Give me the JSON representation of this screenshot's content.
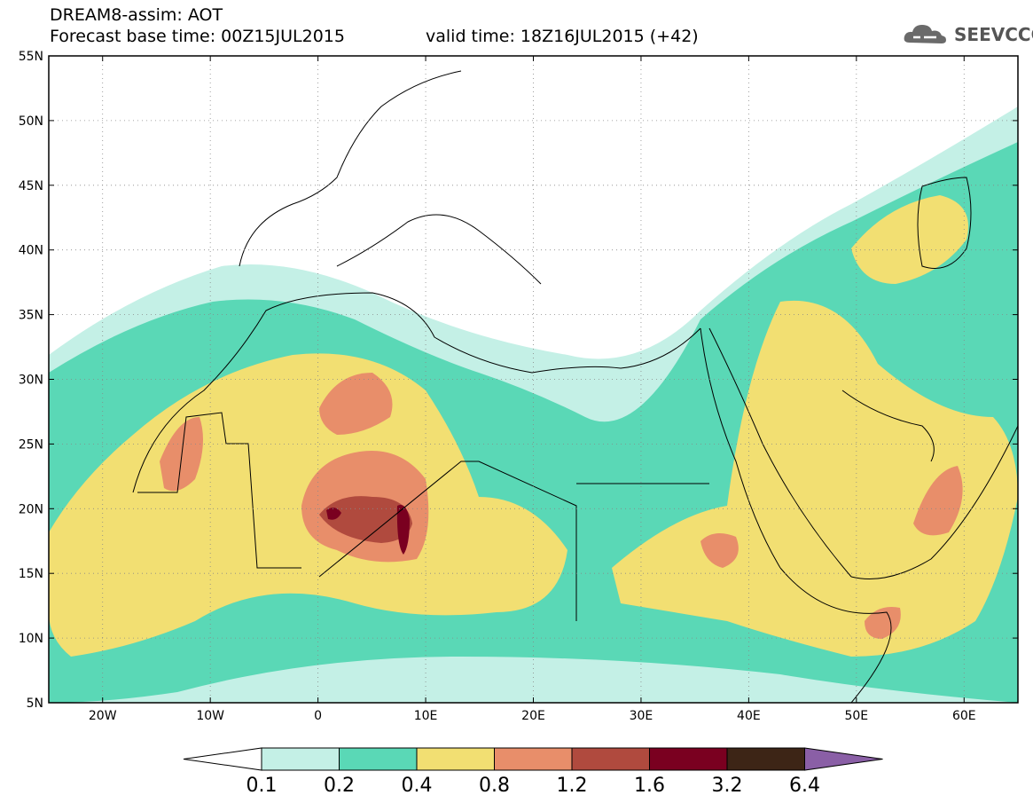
{
  "header": {
    "title_line1": "DREAM8-assim: AOT",
    "title_line2": "Forecast base time: 00Z15JUL2015",
    "valid_time": "valid time: 18Z16JUL2015 (+42)",
    "logo_text": "SEEVCCC"
  },
  "map": {
    "lon_range": [
      -25,
      65
    ],
    "lat_range": [
      5,
      55
    ],
    "lat_labels": [
      "5N",
      "10N",
      "15N",
      "20N",
      "25N",
      "30N",
      "35N",
      "40N",
      "45N",
      "50N",
      "55N"
    ],
    "lat_values": [
      5,
      10,
      15,
      20,
      25,
      30,
      35,
      40,
      45,
      50,
      55
    ],
    "lon_labels": [
      "20W",
      "10W",
      "0",
      "10E",
      "20E",
      "30E",
      "40E",
      "50E",
      "60E"
    ],
    "lon_values": [
      -20,
      -10,
      0,
      10,
      20,
      30,
      40,
      50,
      60
    ]
  },
  "colorbar": {
    "labels": [
      "0.1",
      "0.2",
      "0.4",
      "0.8",
      "1.2",
      "1.6",
      "3.2",
      "6.4"
    ],
    "colors": [
      "#c4f0e6",
      "#5ad8b6",
      "#f2df72",
      "#e88e6a",
      "#b04a3e",
      "#7a0020",
      "#3d2516"
    ],
    "under_color": "#ffffff",
    "over_color": "#8a5fa6"
  }
}
